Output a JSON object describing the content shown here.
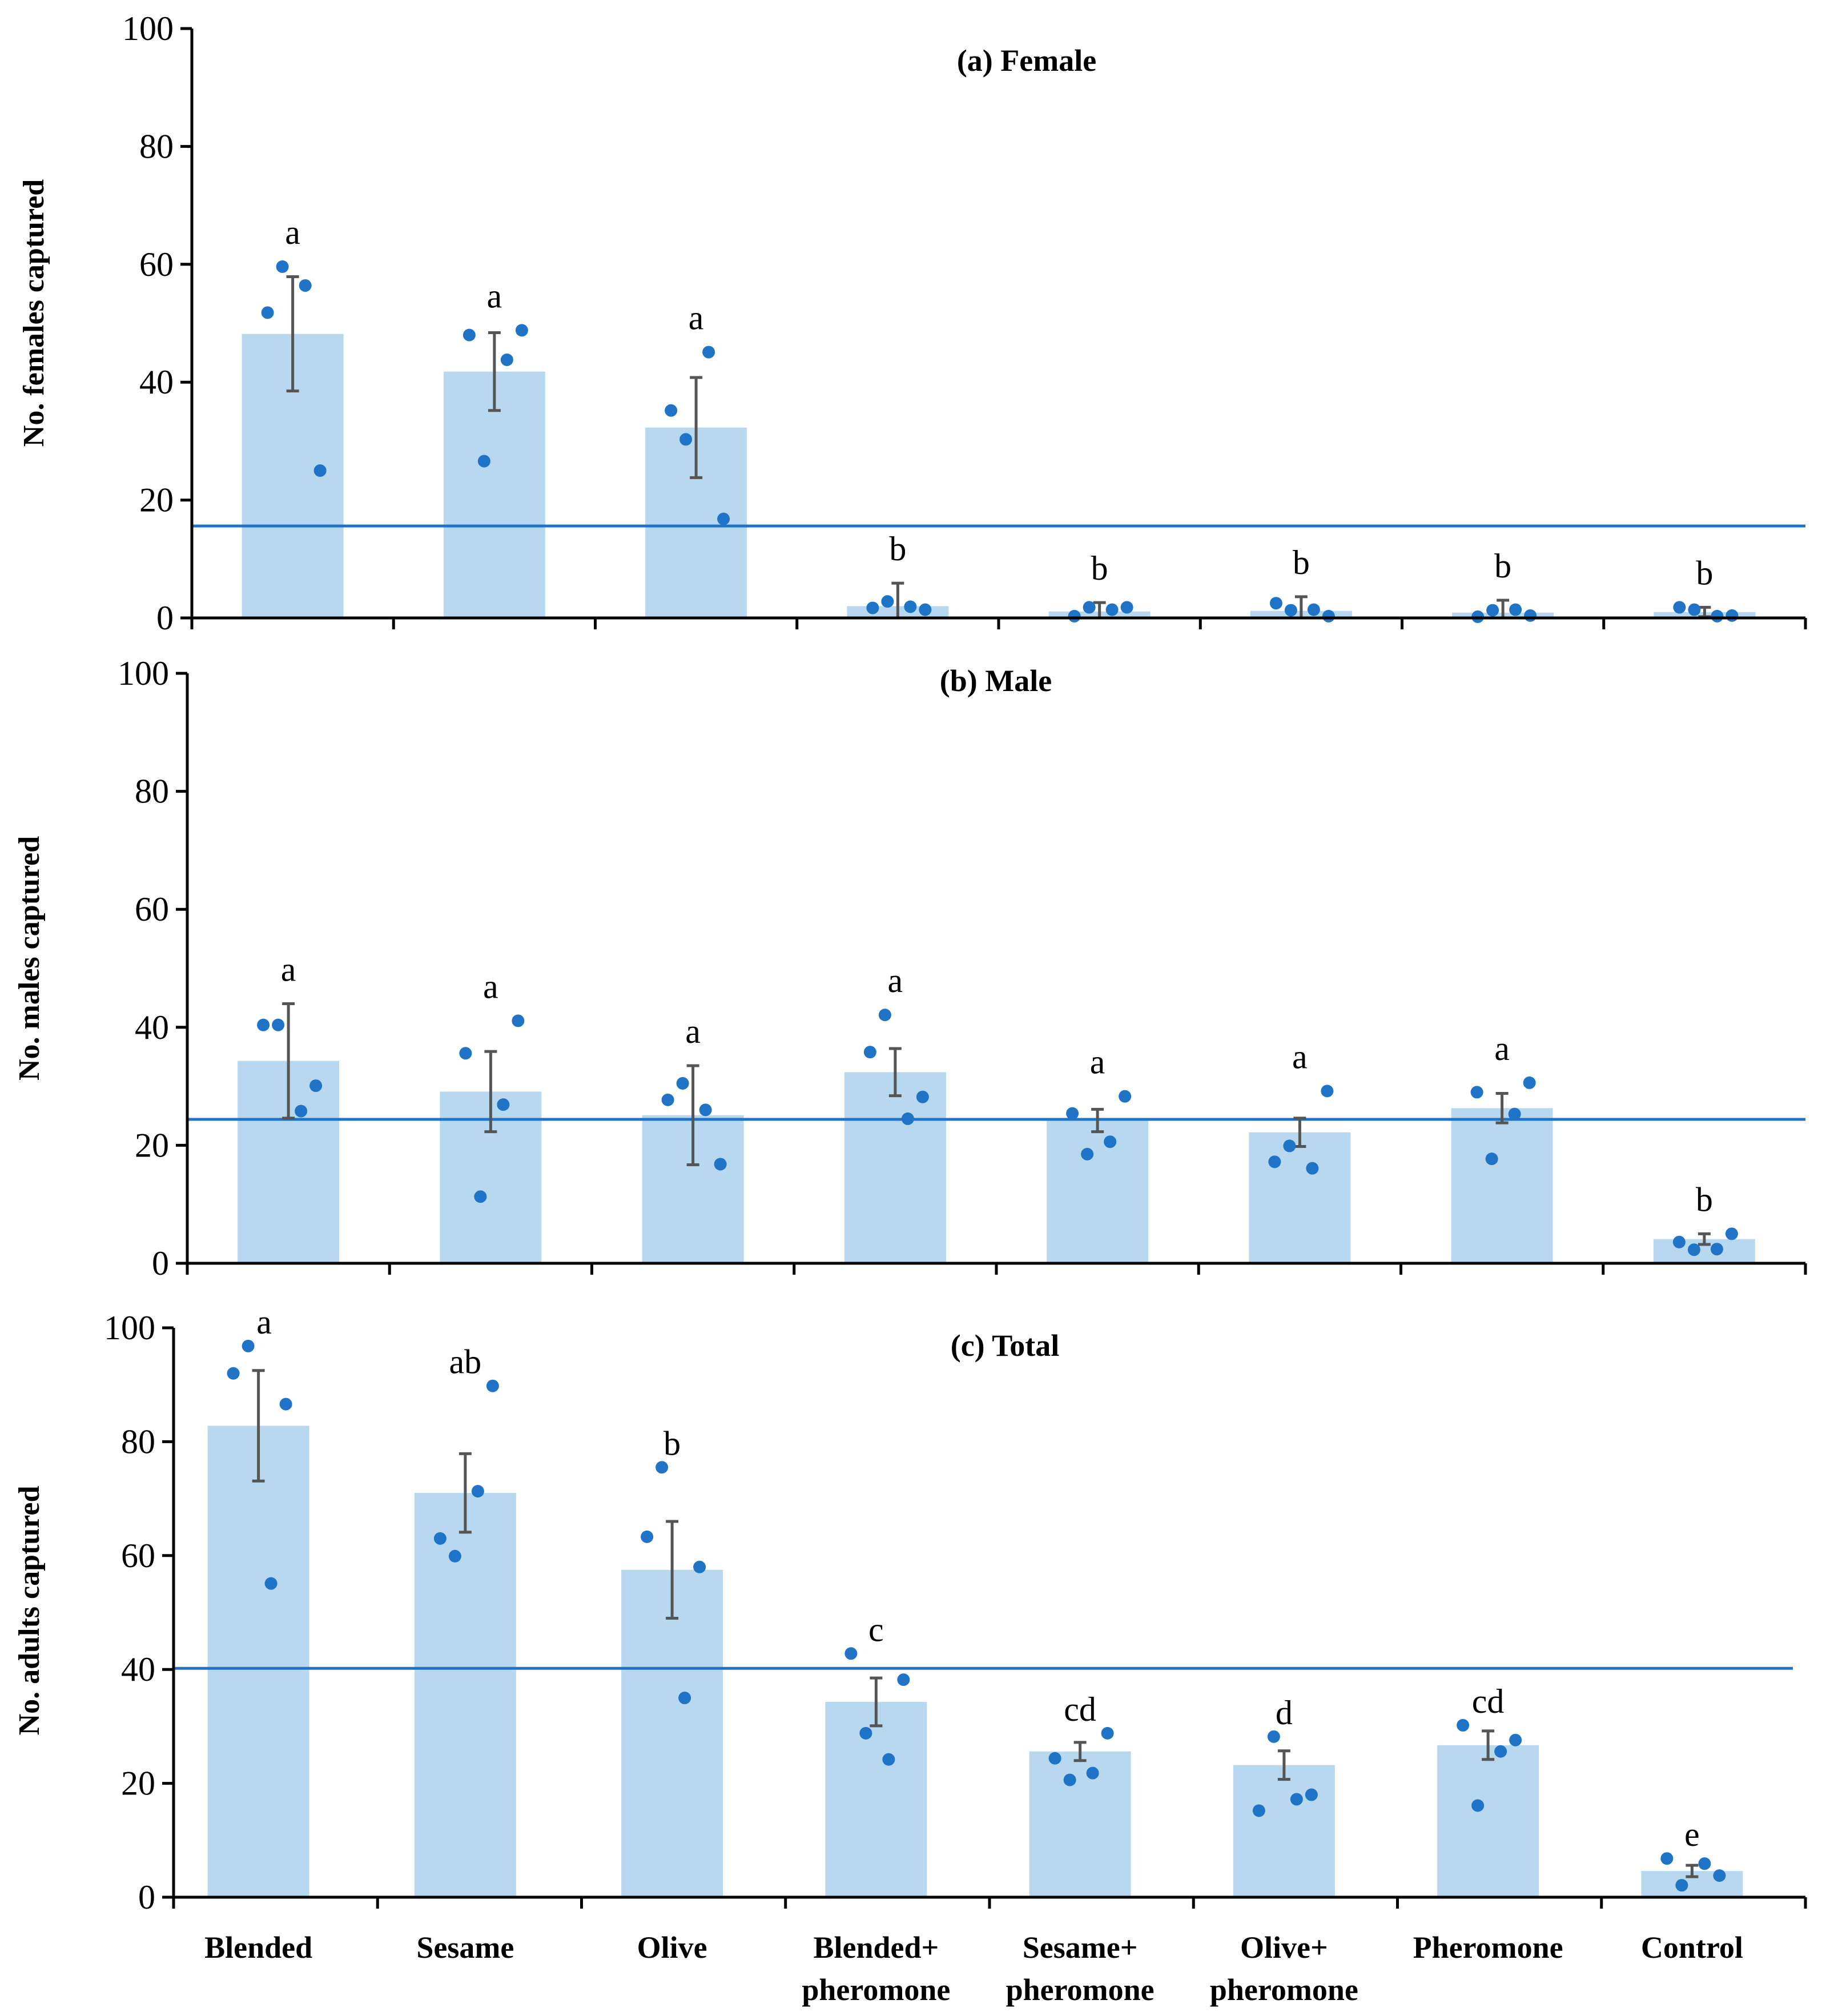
{
  "figure": {
    "categories": [
      [
        "Blended"
      ],
      [
        "Sesame"
      ],
      [
        "Olive"
      ],
      [
        "Blended+",
        "pheromone"
      ],
      [
        "Sesame+",
        "pheromone"
      ],
      [
        "Olive+",
        "pheromone"
      ],
      [
        "Pheromone"
      ],
      [
        "Control"
      ]
    ]
  },
  "colors": {
    "bar": "#b7d8ef",
    "point": "#1f74c7",
    "reference_line": "#1f74c7",
    "error_bar": "#555555",
    "axis": "#000000"
  },
  "chart_data": [
    {
      "type": "bar",
      "title": "(a) Female",
      "ylabel": "No. females captured",
      "ylim": [
        0,
        100
      ],
      "yticks": [
        0,
        20,
        40,
        60,
        80,
        100
      ],
      "reference_line": 15.6,
      "categories": [
        "Blended",
        "Sesame",
        "Olive",
        "Blended+ pheromone",
        "Sesame+ pheromone",
        "Olive+ pheromone",
        "Pheromone",
        "Control"
      ],
      "values": [
        48.2,
        41.8,
        32.3,
        2.0,
        1.1,
        1.2,
        0.9,
        1.0
      ],
      "error": [
        9.7,
        6.6,
        8.5,
        3.9,
        1.5,
        2.4,
        2.1,
        0.8
      ],
      "letters": [
        "a",
        "a",
        "a",
        "b",
        "b",
        "b",
        "b",
        "b"
      ],
      "points": [
        [
          51.8,
          59.6,
          56.4,
          25.0
        ],
        [
          48.0,
          26.6,
          43.8,
          48.8
        ],
        [
          35.2,
          30.3,
          45.1,
          16.8
        ],
        [
          1.7,
          2.8,
          1.9,
          1.4
        ],
        [
          0.3,
          1.8,
          1.4,
          1.8
        ],
        [
          2.5,
          1.3,
          1.4,
          0.3
        ],
        [
          0.2,
          1.3,
          1.4,
          0.4
        ],
        [
          1.8,
          1.4,
          0.3,
          0.4
        ]
      ]
    },
    {
      "type": "bar",
      "title": "(b) Male",
      "ylabel": "No. males captured",
      "ylim": [
        0,
        100
      ],
      "yticks": [
        0,
        20,
        40,
        60,
        80,
        100
      ],
      "reference_line": 24.4,
      "categories": [
        "Blended",
        "Sesame",
        "Olive",
        "Blended+ pheromone",
        "Sesame+ pheromone",
        "Olive+ pheromone",
        "Pheromone",
        "Control"
      ],
      "values": [
        34.3,
        29.1,
        25.1,
        32.4,
        24.2,
        22.2,
        26.3,
        4.1
      ],
      "error": [
        9.7,
        6.8,
        8.4,
        4.0,
        1.9,
        2.4,
        2.5,
        0.9
      ],
      "letters": [
        "a",
        "a",
        "a",
        "a",
        "a",
        "a",
        "a",
        "b"
      ],
      "points": [
        [
          40.4,
          40.4,
          25.8,
          30.1
        ],
        [
          35.6,
          11.3,
          26.9,
          41.1
        ],
        [
          27.7,
          30.5,
          26.0,
          16.8
        ],
        [
          35.8,
          42.1,
          24.5,
          28.2
        ],
        [
          25.4,
          18.5,
          20.6,
          28.3
        ],
        [
          17.2,
          19.9,
          16.1,
          29.2
        ],
        [
          29.0,
          17.7,
          25.3,
          30.6
        ],
        [
          3.6,
          2.3,
          2.4,
          5.0
        ]
      ]
    },
    {
      "type": "bar",
      "title": "(c) Total",
      "ylabel": "No. adults captured",
      "ylim": [
        0,
        100
      ],
      "yticks": [
        0,
        20,
        40,
        60,
        80,
        100
      ],
      "reference_line": 40.2,
      "categories": [
        "Blended",
        "Sesame",
        "Olive",
        "Blended+ pheromone",
        "Sesame+ pheromone",
        "Olive+ pheromone",
        "Pheromone",
        "Control"
      ],
      "values": [
        82.8,
        71.0,
        57.5,
        34.3,
        25.6,
        23.2,
        26.7,
        4.6
      ],
      "error": [
        9.7,
        6.9,
        8.5,
        4.2,
        1.6,
        2.5,
        2.5,
        1.0
      ],
      "letters": [
        "a",
        "ab",
        "b",
        "c",
        "cd",
        "d",
        "cd",
        "e"
      ],
      "points": [
        [
          92.0,
          96.8,
          55.1,
          86.6
        ],
        [
          63.0,
          59.9,
          71.3,
          89.8
        ],
        [
          63.3,
          75.5,
          35.0,
          58.0
        ],
        [
          42.8,
          28.8,
          24.2,
          38.2
        ],
        [
          24.4,
          20.6,
          21.8,
          28.8
        ],
        [
          15.2,
          28.2,
          17.2,
          18.0
        ],
        [
          30.2,
          16.1,
          25.6,
          27.6
        ],
        [
          6.8,
          2.1,
          5.9,
          3.8
        ]
      ]
    }
  ]
}
